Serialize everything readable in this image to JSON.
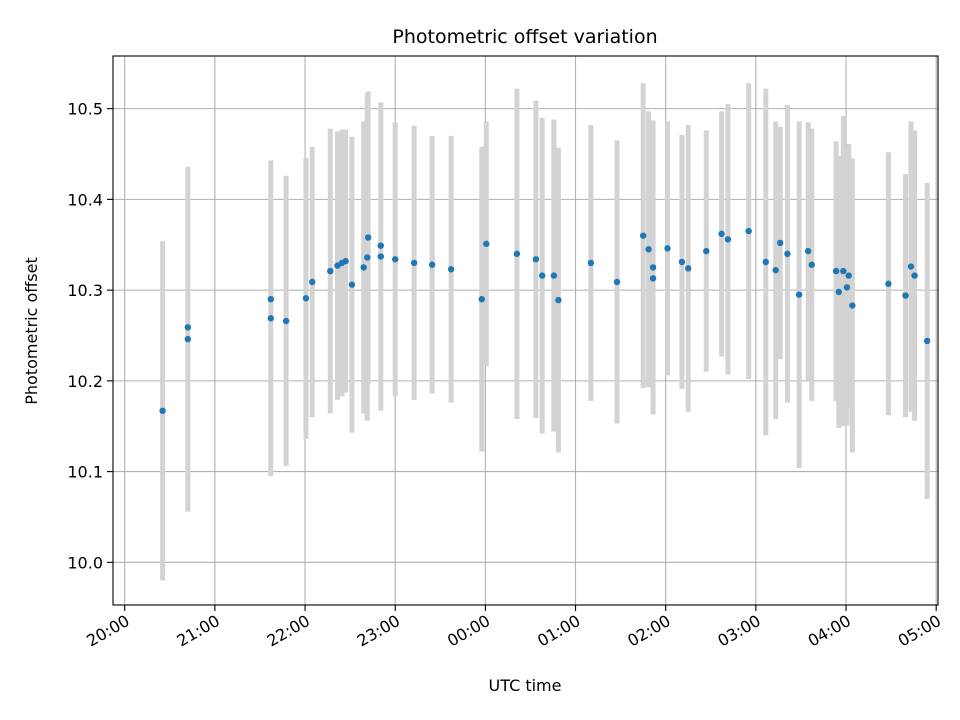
{
  "chart_data": {
    "type": "scatter",
    "title": "Photometric offset variation",
    "xlabel": "UTC time",
    "ylabel": "Photometric offset",
    "x_unit": "hours",
    "x_ticks": [
      {
        "value": 20,
        "label": "20:00"
      },
      {
        "value": 21,
        "label": "21:00"
      },
      {
        "value": 22,
        "label": "22:00"
      },
      {
        "value": 23,
        "label": "23:00"
      },
      {
        "value": 24,
        "label": "00:00"
      },
      {
        "value": 25,
        "label": "01:00"
      },
      {
        "value": 26,
        "label": "02:00"
      },
      {
        "value": 27,
        "label": "03:00"
      },
      {
        "value": 28,
        "label": "04:00"
      },
      {
        "value": 29,
        "label": "05:00"
      }
    ],
    "y_ticks": [
      {
        "value": 10.0,
        "label": "10.0"
      },
      {
        "value": 10.1,
        "label": "10.1"
      },
      {
        "value": 10.2,
        "label": "10.2"
      },
      {
        "value": 10.3,
        "label": "10.3"
      },
      {
        "value": 10.4,
        "label": "10.4"
      },
      {
        "value": 10.5,
        "label": "10.5"
      }
    ],
    "xlim": [
      19.87,
      29.02
    ],
    "ylim": [
      9.953,
      10.558
    ],
    "grid": true,
    "point_color": "#1f77b4",
    "errorbar_color": "#d3d3d3",
    "points": [
      {
        "x": 20.42,
        "y": 10.167,
        "err": 0.187
      },
      {
        "x": 20.7,
        "y": 10.246,
        "err": 0.19
      },
      {
        "x": 20.7,
        "y": 10.259
      },
      {
        "x": 21.62,
        "y": 10.269,
        "err": 0.174
      },
      {
        "x": 21.62,
        "y": 10.29
      },
      {
        "x": 21.79,
        "y": 10.266,
        "err": 0.16
      },
      {
        "x": 22.01,
        "y": 10.291,
        "err": 0.155
      },
      {
        "x": 22.08,
        "y": 10.309,
        "err": 0.149
      },
      {
        "x": 22.28,
        "y": 10.321,
        "err": 0.157
      },
      {
        "x": 22.36,
        "y": 10.327,
        "err": 0.148
      },
      {
        "x": 22.41,
        "y": 10.33,
        "err": 0.147
      },
      {
        "x": 22.45,
        "y": 10.332,
        "err": 0.145
      },
      {
        "x": 22.52,
        "y": 10.306,
        "err": 0.163
      },
      {
        "x": 22.65,
        "y": 10.325,
        "err": 0.161
      },
      {
        "x": 22.69,
        "y": 10.336,
        "err": 0.18
      },
      {
        "x": 22.7,
        "y": 10.358,
        "err": 0.161
      },
      {
        "x": 22.84,
        "y": 10.337,
        "err": 0.17
      },
      {
        "x": 22.84,
        "y": 10.349
      },
      {
        "x": 23.0,
        "y": 10.334,
        "err": 0.151
      },
      {
        "x": 23.21,
        "y": 10.33,
        "err": 0.151
      },
      {
        "x": 23.41,
        "y": 10.328,
        "err": 0.142
      },
      {
        "x": 23.62,
        "y": 10.323,
        "err": 0.147
      },
      {
        "x": 23.96,
        "y": 10.29,
        "err": 0.168
      },
      {
        "x": 24.01,
        "y": 10.351,
        "err": 0.135
      },
      {
        "x": 24.35,
        "y": 10.34,
        "err": 0.182
      },
      {
        "x": 24.56,
        "y": 10.334,
        "err": 0.175
      },
      {
        "x": 24.63,
        "y": 10.316,
        "err": 0.174
      },
      {
        "x": 24.76,
        "y": 10.316,
        "err": 0.172
      },
      {
        "x": 24.81,
        "y": 10.289,
        "err": 0.168
      },
      {
        "x": 25.17,
        "y": 10.33,
        "err": 0.152
      },
      {
        "x": 25.46,
        "y": 10.309,
        "err": 0.156
      },
      {
        "x": 25.75,
        "y": 10.36,
        "err": 0.168
      },
      {
        "x": 25.81,
        "y": 10.345,
        "err": 0.152
      },
      {
        "x": 25.86,
        "y": 10.325,
        "err": 0.162
      },
      {
        "x": 25.86,
        "y": 10.313
      },
      {
        "x": 26.02,
        "y": 10.346,
        "err": 0.14
      },
      {
        "x": 26.18,
        "y": 10.331,
        "err": 0.14
      },
      {
        "x": 26.25,
        "y": 10.324,
        "err": 0.158
      },
      {
        "x": 26.45,
        "y": 10.343,
        "err": 0.133
      },
      {
        "x": 26.62,
        "y": 10.362,
        "err": 0.135
      },
      {
        "x": 26.69,
        "y": 10.356,
        "err": 0.149
      },
      {
        "x": 26.92,
        "y": 10.365,
        "err": 0.163
      },
      {
        "x": 27.11,
        "y": 10.331,
        "err": 0.191
      },
      {
        "x": 27.22,
        "y": 10.322,
        "err": 0.164
      },
      {
        "x": 27.27,
        "y": 10.352,
        "err": 0.128
      },
      {
        "x": 27.35,
        "y": 10.34,
        "err": 0.164
      },
      {
        "x": 27.48,
        "y": 10.295,
        "err": 0.191
      },
      {
        "x": 27.58,
        "y": 10.343,
        "err": 0.142
      },
      {
        "x": 27.62,
        "y": 10.328,
        "err": 0.15
      },
      {
        "x": 27.89,
        "y": 10.321,
        "err": 0.143
      },
      {
        "x": 27.92,
        "y": 10.298,
        "err": 0.15
      },
      {
        "x": 27.97,
        "y": 10.321,
        "err": 0.171
      },
      {
        "x": 28.01,
        "y": 10.303,
        "err": 0.152
      },
      {
        "x": 28.03,
        "y": 10.316,
        "err": 0.145
      },
      {
        "x": 28.07,
        "y": 10.283,
        "err": 0.162
      },
      {
        "x": 28.47,
        "y": 10.307,
        "err": 0.145
      },
      {
        "x": 28.66,
        "y": 10.294,
        "err": 0.134
      },
      {
        "x": 28.72,
        "y": 10.326,
        "err": 0.16
      },
      {
        "x": 28.76,
        "y": 10.316,
        "err": 0.16
      },
      {
        "x": 28.9,
        "y": 10.244,
        "err": 0.174
      }
    ]
  }
}
